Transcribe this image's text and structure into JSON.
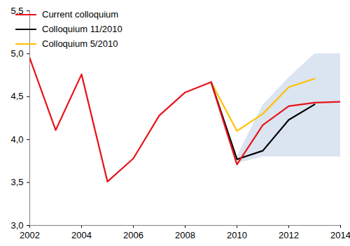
{
  "chart_data": {
    "type": "line",
    "x": [
      2002,
      2003,
      2004,
      2005,
      2006,
      2007,
      2008,
      2009,
      2010,
      2011,
      2012,
      2013,
      2014
    ],
    "series": [
      {
        "name": "Current colloquium",
        "color": "#e8141a",
        "values": [
          4.95,
          4.11,
          4.76,
          3.51,
          3.78,
          4.28,
          4.55,
          4.67,
          3.71,
          4.17,
          4.39,
          4.43,
          4.44
        ]
      },
      {
        "name": "Colloquium 11/2010",
        "color": "#000000",
        "values": [
          null,
          null,
          null,
          null,
          null,
          null,
          null,
          4.67,
          3.77,
          3.87,
          4.23,
          4.41,
          null
        ]
      },
      {
        "name": "Colloquium 5/2010",
        "color": "#ffc000",
        "values": [
          null,
          null,
          null,
          null,
          null,
          null,
          null,
          4.67,
          4.1,
          4.3,
          4.61,
          4.71,
          null
        ]
      }
    ],
    "band": {
      "color": "#dbe5f1",
      "x": [
        2010,
        2011,
        2012,
        2013,
        2014
      ],
      "lower": [
        3.72,
        3.8,
        3.8,
        3.8,
        3.8
      ],
      "upper": [
        3.8,
        4.4,
        4.72,
        5.0,
        5.0
      ]
    },
    "xlim": [
      2002,
      2014
    ],
    "xticks": [
      2002,
      2004,
      2006,
      2008,
      2010,
      2012,
      2014
    ],
    "ylim": [
      3.0,
      5.5
    ],
    "yticks": [
      {
        "value": 3.0,
        "label": "3,0"
      },
      {
        "value": 3.5,
        "label": "3,5"
      },
      {
        "value": 4.0,
        "label": "4,0"
      },
      {
        "value": 4.5,
        "label": "4,5"
      },
      {
        "value": 5.0,
        "label": "5,0"
      },
      {
        "value": 5.5,
        "label": "5,5"
      }
    ],
    "grid": false,
    "legend": "top-left"
  }
}
